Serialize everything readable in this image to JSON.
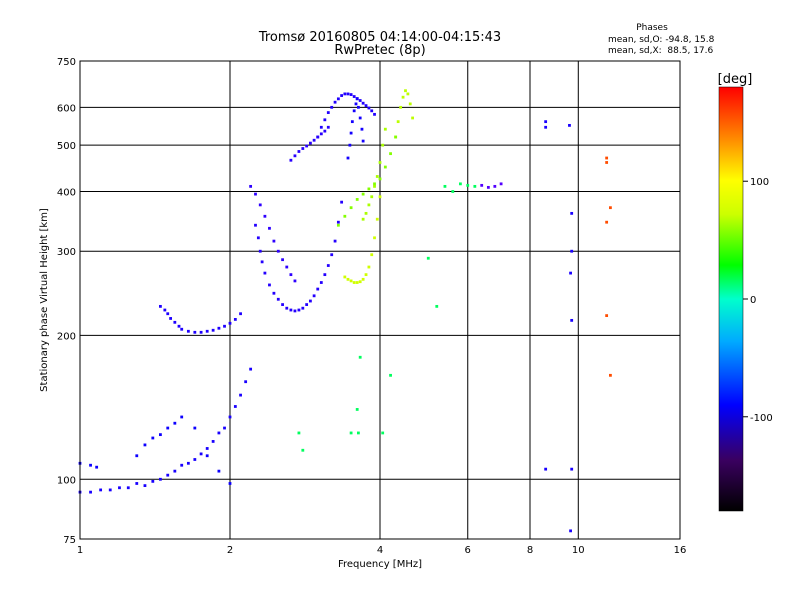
{
  "chart_data": {
    "type": "scatter",
    "title": "Tromsø 20160805 04:14:00-04:15:43",
    "subtitle": "RwPretec (8p)",
    "xlabel": "Frequency [MHz]",
    "ylabel": "Stationary phase Virtual Height [km]",
    "x_scale": "log",
    "y_scale": "log",
    "xlim": [
      1,
      16
    ],
    "ylim": [
      75,
      750
    ],
    "x_ticks": [
      1,
      2,
      4,
      6,
      8,
      10,
      16
    ],
    "x_tick_labels": [
      "1",
      "2",
      "4",
      "6",
      "8",
      "10",
      "16"
    ],
    "y_ticks": [
      75,
      100,
      200,
      300,
      400,
      500,
      600,
      750
    ],
    "y_tick_labels": [
      "75",
      "100",
      "200",
      "300",
      "400",
      "500",
      "600",
      "750"
    ],
    "grid": true,
    "stats": {
      "title": "Phases",
      "line_o": "mean, sd,O: -94.8, 15.8",
      "line_x": "mean, sd,X:  88.5, 17.6"
    },
    "colorbar": {
      "label": "[deg]",
      "range": [
        -180,
        180
      ],
      "ticks": [
        100,
        0,
        -100
      ],
      "tick_labels": [
        "100",
        "0",
        "-100"
      ]
    },
    "series": [
      {
        "x": [
          1.0,
          1.05,
          1.1,
          1.15,
          1.2,
          1.25,
          1.3,
          1.35,
          1.4,
          1.45,
          1.5,
          1.55,
          1.6,
          1.65,
          1.7,
          1.75,
          1.8,
          1.85,
          1.9,
          1.95,
          2.0,
          2.05,
          2.1,
          2.15,
          2.2
        ],
        "y": [
          94,
          94,
          95,
          95,
          96,
          96,
          98,
          97,
          99,
          100,
          102,
          104,
          107,
          108,
          110,
          113,
          116,
          120,
          125,
          128,
          135,
          142,
          150,
          160,
          170
        ],
        "phase": -105
      },
      {
        "x": [
          1.45,
          1.48,
          1.5,
          1.52,
          1.55,
          1.58,
          1.6,
          1.65,
          1.7,
          1.75,
          1.8,
          1.85,
          1.9,
          1.95,
          2.0,
          2.05,
          2.1
        ],
        "y": [
          230,
          226,
          222,
          217,
          213,
          209,
          206,
          204,
          203,
          203,
          204,
          205,
          207,
          209,
          212,
          216,
          222
        ],
        "phase": -108
      },
      {
        "x": [
          2.25,
          2.28,
          2.3,
          2.32,
          2.35,
          2.4,
          2.45,
          2.5,
          2.55,
          2.6,
          2.65,
          2.7,
          2.75,
          2.8,
          2.85,
          2.9,
          2.95,
          3.0,
          3.05,
          3.1,
          3.15,
          3.2,
          3.25,
          3.3,
          3.35
        ],
        "y": [
          340,
          320,
          300,
          285,
          270,
          255,
          245,
          238,
          232,
          228,
          226,
          225,
          226,
          228,
          232,
          236,
          242,
          250,
          258,
          268,
          280,
          295,
          315,
          345,
          380
        ],
        "phase": -112
      },
      {
        "x": [
          2.2,
          2.25,
          2.3,
          2.35,
          2.4,
          2.45,
          2.5,
          2.55,
          2.6,
          2.65,
          2.7
        ],
        "y": [
          410,
          395,
          375,
          355,
          335,
          315,
          300,
          288,
          278,
          268,
          260
        ],
        "phase": -118
      },
      {
        "x": [
          3.0,
          3.05,
          3.1,
          3.15,
          3.2,
          3.25,
          3.3,
          3.35,
          3.4,
          3.45,
          3.5,
          3.55,
          3.6,
          3.65,
          3.7,
          3.75,
          3.8,
          3.85,
          3.9
        ],
        "y": [
          520,
          545,
          565,
          585,
          600,
          615,
          625,
          635,
          640,
          640,
          638,
          632,
          626,
          620,
          612,
          605,
          598,
          590,
          580
        ],
        "phase": -110
      },
      {
        "x": [
          3.45,
          3.48,
          3.5,
          3.52,
          3.55,
          3.58,
          3.6,
          3.62,
          3.65,
          3.68,
          3.7
        ],
        "y": [
          470,
          500,
          530,
          560,
          590,
          610,
          625,
          600,
          570,
          540,
          510
        ],
        "phase": -102
      },
      {
        "x": [
          2.65,
          2.7,
          2.75,
          2.8,
          2.85,
          2.9,
          2.95,
          3.0,
          3.05,
          3.1,
          3.15
        ],
        "y": [
          465,
          475,
          485,
          492,
          498,
          505,
          512,
          520,
          528,
          535,
          545
        ],
        "phase": -115
      },
      {
        "x": [
          3.4,
          3.45,
          3.5,
          3.55,
          3.6,
          3.65,
          3.7,
          3.75,
          3.8,
          3.85,
          3.9,
          3.95,
          4.0
        ],
        "y": [
          265,
          262,
          260,
          258,
          258,
          259,
          262,
          268,
          278,
          295,
          320,
          350,
          390
        ],
        "phase": 100
      },
      {
        "x": [
          3.7,
          3.75,
          3.8,
          3.85,
          3.9,
          3.95,
          4.0,
          4.05,
          4.1
        ],
        "y": [
          350,
          360,
          375,
          390,
          410,
          430,
          460,
          500,
          540
        ],
        "phase": 90
      },
      {
        "x": [
          4.3,
          4.35,
          4.4,
          4.45,
          4.5,
          4.55,
          4.6,
          4.65
        ],
        "y": [
          520,
          560,
          600,
          630,
          650,
          640,
          610,
          570
        ],
        "phase": 95
      },
      {
        "x": [
          3.3,
          3.4,
          3.5,
          3.6,
          3.7,
          3.8,
          3.9,
          4.0,
          4.1,
          4.2,
          4.3
        ],
        "y": [
          340,
          355,
          370,
          385,
          395,
          405,
          415,
          425,
          450,
          480,
          520
        ],
        "phase": 80
      },
      {
        "x": [
          6.4,
          6.6,
          6.8,
          7.0
        ],
        "y": [
          412,
          408,
          410,
          415
        ],
        "phase": -140
      },
      {
        "x": [
          8.6,
          8.6,
          9.6,
          9.7,
          9.7,
          9.65,
          9.7,
          8.6,
          9.7,
          9.65
        ],
        "y": [
          560,
          545,
          550,
          360,
          300,
          270,
          215,
          105,
          105,
          78
        ],
        "phase": -105
      },
      {
        "x": [
          11.4,
          11.4,
          11.6,
          11.4,
          11.6,
          11.4
        ],
        "y": [
          470,
          460,
          370,
          220,
          165,
          345
        ],
        "phase": 160
      },
      {
        "x": [
          3.5,
          3.62,
          3.65,
          2.75,
          2.8,
          3.6,
          5.4,
          5.6,
          5.8,
          6.0,
          6.2,
          4.05,
          4.2,
          5.2,
          5.0
        ],
        "y": [
          125,
          125,
          180,
          125,
          115,
          140,
          410,
          400,
          415,
          412,
          410,
          125,
          165,
          230,
          290
        ],
        "phase": 20
      },
      {
        "x": [
          1.0,
          1.05,
          1.08,
          1.3,
          1.35,
          1.4,
          1.45,
          1.5,
          1.55,
          1.6,
          1.7,
          1.8,
          1.9,
          2.0
        ],
        "y": [
          108,
          107,
          106,
          112,
          118,
          122,
          124,
          128,
          131,
          135,
          128,
          112,
          104,
          98
        ],
        "phase": -98
      }
    ]
  }
}
